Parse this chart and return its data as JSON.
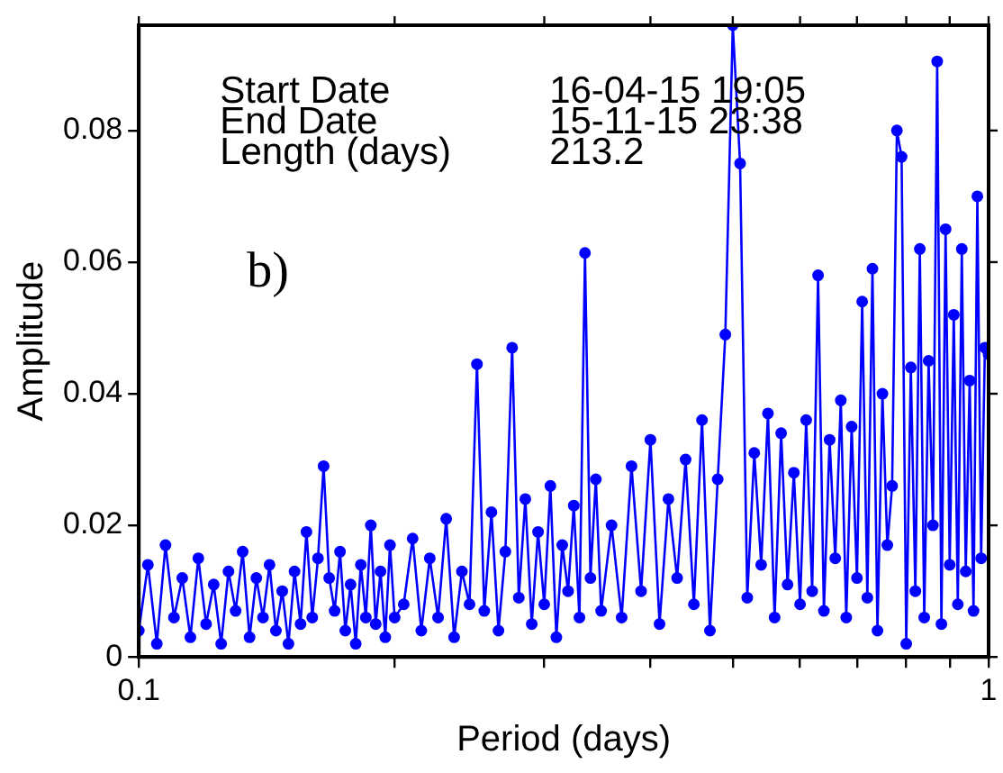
{
  "chart_data": {
    "type": "line",
    "xlabel": "Period (days)",
    "ylabel": "Amplitude",
    "annotations": [
      "Start Date",
      "16-04-15 19:05",
      "End Date",
      "15-11-15 23:38",
      "Length (days)",
      "213.2",
      "b)"
    ],
    "log": "x",
    "grid": false,
    "legend": false,
    "marker": "circle",
    "line_style": "solid",
    "xlim": [
      0.1,
      1
    ],
    "xticks": [
      0.1,
      {
        "value": 0.2,
        "label": null
      },
      {
        "value": 0.3,
        "label": null
      },
      {
        "value": 0.4,
        "label": null
      },
      {
        "value": 0.5,
        "label": null
      },
      {
        "value": 0.6,
        "label": null
      },
      {
        "value": 0.7,
        "label": null
      },
      {
        "value": 0.8,
        "label": null
      },
      {
        "value": 0.9,
        "label": null
      },
      1
    ],
    "ylim": [
      0,
      0.096
    ],
    "yticks": [
      0,
      0.02,
      0.04,
      0.06,
      0.08
    ],
    "series": [
      {
        "color": "#0000ff",
        "x": [
          0.1,
          0.1025,
          0.105,
          0.1075,
          0.11,
          0.1125,
          0.115,
          0.1175,
          0.12,
          0.1225,
          0.125,
          0.1275,
          0.13,
          0.1325,
          0.135,
          0.1375,
          0.14,
          0.1425,
          0.145,
          0.1475,
          0.15,
          0.1525,
          0.155,
          0.1575,
          0.16,
          0.1625,
          0.165,
          0.1675,
          0.17,
          0.1725,
          0.175,
          0.1775,
          0.18,
          0.1825,
          0.185,
          0.1875,
          0.19,
          0.1925,
          0.195,
          0.1975,
          0.2,
          0.205,
          0.21,
          0.215,
          0.22,
          0.225,
          0.23,
          0.235,
          0.24,
          0.245,
          0.25,
          0.255,
          0.26,
          0.265,
          0.27,
          0.275,
          0.28,
          0.285,
          0.29,
          0.295,
          0.3,
          0.305,
          0.31,
          0.315,
          0.32,
          0.325,
          0.33,
          0.335,
          0.34,
          0.345,
          0.35,
          0.36,
          0.37,
          0.38,
          0.39,
          0.4,
          0.41,
          0.42,
          0.43,
          0.44,
          0.45,
          0.46,
          0.47,
          0.48,
          0.49,
          0.5,
          0.51,
          0.52,
          0.53,
          0.54,
          0.55,
          0.56,
          0.57,
          0.58,
          0.59,
          0.6,
          0.61,
          0.62,
          0.63,
          0.64,
          0.65,
          0.66,
          0.67,
          0.68,
          0.69,
          0.7,
          0.71,
          0.72,
          0.73,
          0.74,
          0.75,
          0.76,
          0.77,
          0.78,
          0.79,
          0.8,
          0.81,
          0.82,
          0.83,
          0.84,
          0.85,
          0.86,
          0.87,
          0.88,
          0.89,
          0.9,
          0.91,
          0.92,
          0.93,
          0.94,
          0.95,
          0.96,
          0.97,
          0.98,
          0.99,
          1
        ],
        "values": [
          0.004,
          0.014,
          0.002,
          0.017,
          0.006,
          0.012,
          0.003,
          0.015,
          0.005,
          0.011,
          0.002,
          0.013,
          0.007,
          0.016,
          0.003,
          0.012,
          0.006,
          0.014,
          0.004,
          0.01,
          0.002,
          0.013,
          0.005,
          0.019,
          0.006,
          0.015,
          0.029,
          0.012,
          0.007,
          0.016,
          0.004,
          0.011,
          0.002,
          0.014,
          0.006,
          0.02,
          0.005,
          0.013,
          0.003,
          0.017,
          0.006,
          0.008,
          0.018,
          0.004,
          0.015,
          0.006,
          0.021,
          0.003,
          0.013,
          0.008,
          0.0445,
          0.007,
          0.022,
          0.004,
          0.016,
          0.047,
          0.009,
          0.024,
          0.005,
          0.019,
          0.008,
          0.026,
          0.003,
          0.017,
          0.01,
          0.023,
          0.006,
          0.0614,
          0.012,
          0.027,
          0.007,
          0.02,
          0.006,
          0.029,
          0.01,
          0.033,
          0.005,
          0.024,
          0.012,
          0.03,
          0.008,
          0.036,
          0.004,
          0.027,
          0.049,
          0.096,
          0.075,
          0.009,
          0.031,
          0.014,
          0.037,
          0.006,
          0.034,
          0.011,
          0.028,
          0.008,
          0.036,
          0.01,
          0.058,
          0.007,
          0.033,
          0.015,
          0.039,
          0.006,
          0.035,
          0.012,
          0.054,
          0.009,
          0.059,
          0.004,
          0.04,
          0.017,
          0.026,
          0.08,
          0.076,
          0.002,
          0.044,
          0.01,
          0.062,
          0.006,
          0.045,
          0.02,
          0.0905,
          0.005,
          0.065,
          0.014,
          0.052,
          0.008,
          0.062,
          0.013,
          0.042,
          0.007,
          0.07,
          0.015,
          0.047,
          0.046
        ]
      }
    ]
  }
}
